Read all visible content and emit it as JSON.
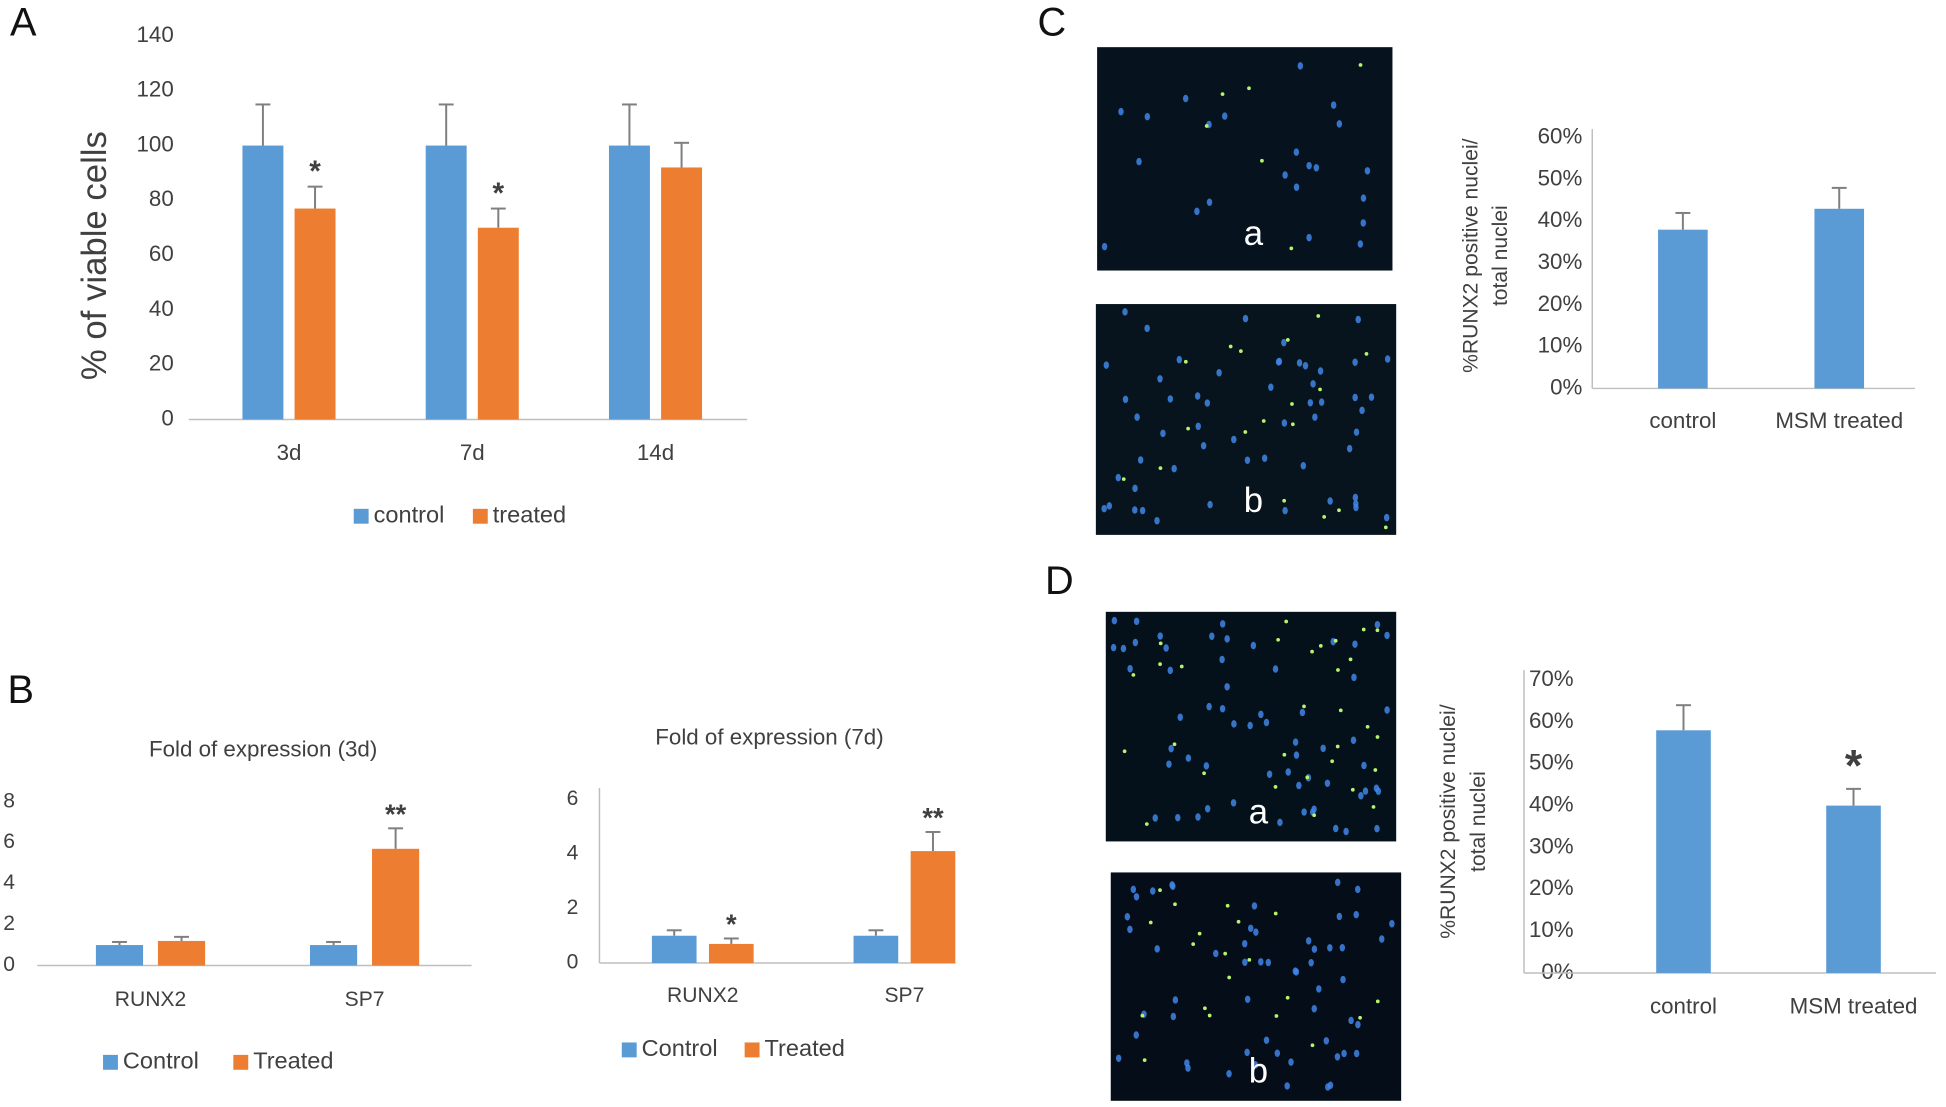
{
  "figure": {
    "panels": [
      {
        "label": "A"
      },
      {
        "label": "B"
      },
      {
        "label": "C",
        "images": [
          "a",
          "b"
        ]
      },
      {
        "label": "D",
        "images": [
          "a",
          "b"
        ]
      }
    ]
  },
  "chart_data": [
    {
      "type": "bar",
      "y_label": "% of viable cells",
      "categories": [
        "3d",
        "7d",
        "14d"
      ],
      "series": [
        {
          "name": "control",
          "color": "#5b9bd5",
          "values": [
            100,
            100,
            100
          ],
          "errors": [
            15,
            15,
            15
          ]
        },
        {
          "name": "treated",
          "color": "#ed7d31",
          "values": [
            77,
            70,
            92
          ],
          "errors": [
            8,
            7,
            9
          ],
          "significance": [
            "*",
            "*",
            null
          ]
        }
      ],
      "ylim": [
        0,
        140
      ],
      "yticks": [
        0,
        20,
        40,
        60,
        80,
        100,
        120,
        140
      ],
      "legend": "bottom"
    },
    {
      "type": "bar",
      "title": "Fold of expression (3d)",
      "categories": [
        "RUNX2",
        "SP7"
      ],
      "series": [
        {
          "name": "Control",
          "color": "#5b9bd5",
          "values": [
            1,
            1
          ],
          "errors": [
            0.15,
            0.15
          ]
        },
        {
          "name": "Treated",
          "color": "#ed7d31",
          "values": [
            1.2,
            5.7
          ],
          "errors": [
            0.2,
            1.0
          ],
          "significance": [
            null,
            "**"
          ]
        }
      ],
      "ylim": [
        0,
        8
      ],
      "yticks": [
        0,
        2,
        4,
        6,
        8
      ],
      "legend": "bottom"
    },
    {
      "type": "bar",
      "title": "Fold of expression (7d)",
      "categories": [
        "RUNX2",
        "SP7"
      ],
      "series": [
        {
          "name": "Control",
          "color": "#5b9bd5",
          "values": [
            1,
            1
          ],
          "errors": [
            0.2,
            0.2
          ]
        },
        {
          "name": "Treated",
          "color": "#ed7d31",
          "values": [
            0.7,
            4.1
          ],
          "errors": [
            0.2,
            0.7
          ],
          "significance": [
            "*",
            "**"
          ]
        }
      ],
      "ylim": [
        0,
        6
      ],
      "yticks": [
        0,
        2,
        4,
        6
      ],
      "legend": "bottom"
    },
    {
      "type": "bar",
      "y_label": [
        "%RUNX2 positive nuclei/",
        "total nuclei"
      ],
      "categories": [
        "control",
        "MSM treated"
      ],
      "series": [
        {
          "color": "#5b9bd5",
          "values": [
            38,
            43
          ],
          "errors": [
            4,
            5
          ]
        }
      ],
      "ylim": [
        0,
        60
      ],
      "yticks": [
        {
          "value": 0,
          "label": "0%"
        },
        {
          "value": 10,
          "label": "10%"
        },
        {
          "value": 20,
          "label": "20%"
        },
        {
          "value": 30,
          "label": "30%"
        },
        {
          "value": 40,
          "label": "40%"
        },
        {
          "value": 50,
          "label": "50%"
        },
        {
          "value": 60,
          "label": "60%"
        }
      ]
    },
    {
      "type": "bar",
      "y_label": [
        "%RUNX2 positive nuclei/",
        "total nuclei"
      ],
      "categories": [
        "control",
        "MSM treated"
      ],
      "series": [
        {
          "color": "#5b9bd5",
          "values": [
            58,
            40
          ],
          "errors": [
            6,
            4
          ],
          "significance": [
            null,
            "*"
          ]
        }
      ],
      "ylim": [
        0,
        70
      ],
      "yticks": [
        {
          "value": 0,
          "label": "0%"
        },
        {
          "value": 10,
          "label": "10%"
        },
        {
          "value": 20,
          "label": "20%"
        },
        {
          "value": 30,
          "label": "30%"
        },
        {
          "value": 40,
          "label": "40%"
        },
        {
          "value": 50,
          "label": "50%"
        },
        {
          "value": 60,
          "label": "60%"
        },
        {
          "value": 70,
          "label": "70%"
        }
      ]
    }
  ]
}
